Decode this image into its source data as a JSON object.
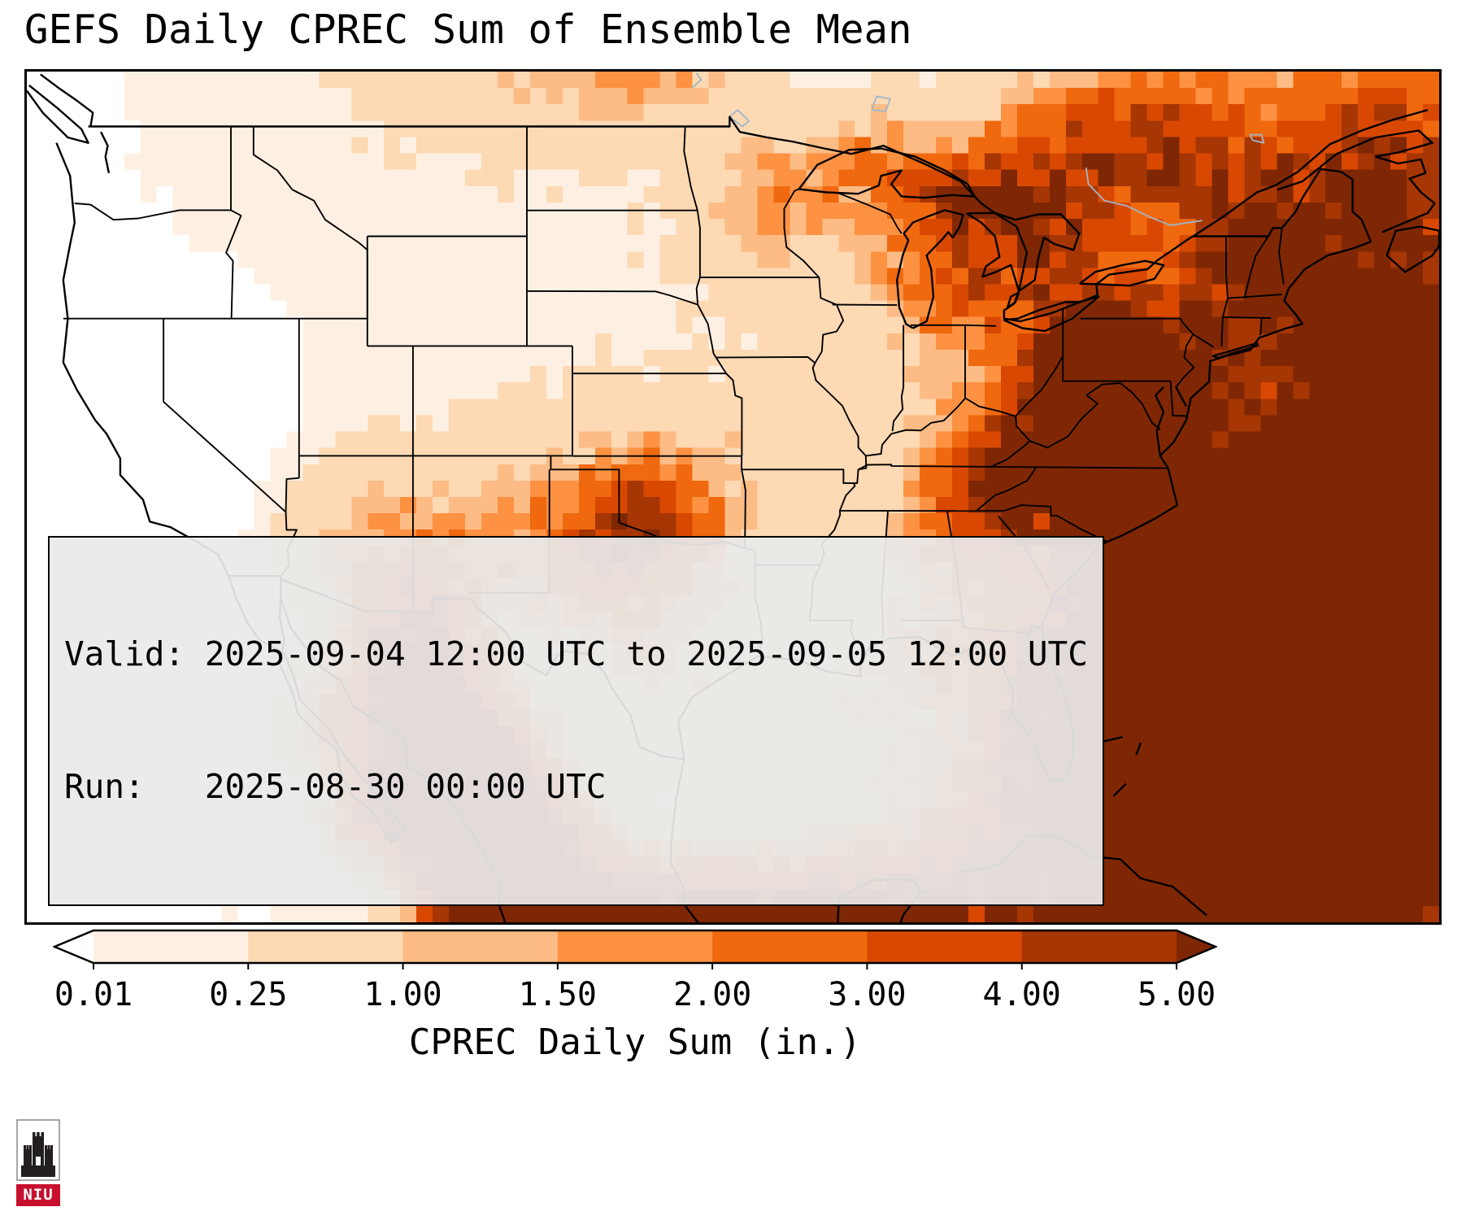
{
  "title": "GEFS Daily CPREC Sum of Ensemble Mean",
  "annotation_box": {
    "valid_line": "Valid: 2025-09-04 12:00 UTC to 2025-09-05 12:00 UTC",
    "run_line": "Run:   2025-08-30 00:00 UTC"
  },
  "colorbar": {
    "label": "CPREC Daily Sum (in.)",
    "tick_labels": [
      "0.01",
      "0.25",
      "1.00",
      "1.50",
      "2.00",
      "3.00",
      "4.00",
      "5.00"
    ]
  },
  "logo": {
    "text": "NIU"
  },
  "chart_data": {
    "type": "heatmap",
    "title": "GEFS Daily CPREC Sum of Ensemble Mean",
    "variable": "CPREC Daily Sum",
    "units": "in.",
    "valid": "2025-09-04 12:00 UTC to 2025-09-05 12:00 UTC",
    "run": "2025-08-30 00:00 UTC",
    "colorbar_label": "CPREC Daily Sum (in.)",
    "boundaries": [
      0.01,
      0.25,
      1.0,
      1.5,
      2.0,
      3.0,
      4.0,
      5.0
    ],
    "under_color": "#ffffff",
    "over_color": "#7f2704",
    "interval_colors": [
      "#fdf0e2",
      "#fdd9b4",
      "#fdbc85",
      "#fd9243",
      "#f0690f",
      "#d94801",
      "#a63603"
    ],
    "map_extent": {
      "lon_min": -126,
      "lon_max": -64,
      "lat_min": 20,
      "lat_max": 51
    },
    "grid": {
      "nx": 87,
      "ny": 52
    },
    "precip_maxima_format": [
      "lon",
      "lat",
      "sigma_lon_deg",
      "sigma_lat_deg",
      "peak_inches"
    ],
    "precip_maxima": [
      [
        -96,
        39,
        20,
        13,
        0.2
      ],
      [
        -119,
        39,
        4.5,
        3.5,
        -0.22
      ],
      [
        -123.5,
        31,
        6,
        7,
        -0.28
      ],
      [
        -126,
        45,
        3.5,
        5,
        -0.15
      ],
      [
        -99.2,
        34.4,
        1.9,
        1.5,
        2.6
      ],
      [
        -101,
        33,
        3.2,
        2.4,
        1.2
      ],
      [
        -97,
        35.8,
        2.6,
        2,
        1.0
      ],
      [
        -103.5,
        34.5,
        2.6,
        2.2,
        0.9
      ],
      [
        -98.5,
        30.8,
        2.6,
        2.2,
        0.7
      ],
      [
        -110.9,
        33.9,
        2.4,
        2,
        1.3
      ],
      [
        -108.3,
        32.3,
        2,
        1.7,
        1.1
      ],
      [
        -109.5,
        30.6,
        1.6,
        1.4,
        2.6
      ],
      [
        -108.8,
        28.2,
        1.7,
        1.7,
        6.5
      ],
      [
        -107.2,
        25.6,
        1.8,
        1.8,
        9
      ],
      [
        -105.8,
        23.2,
        1.9,
        1.9,
        9.5
      ],
      [
        -104.6,
        21.2,
        2.2,
        1.8,
        9
      ],
      [
        -110.3,
        24.3,
        1.4,
        1.2,
        4.5
      ],
      [
        -112.6,
        27.2,
        1.3,
        1.2,
        1.8
      ],
      [
        -100,
        19.3,
        3.5,
        1.6,
        8
      ],
      [
        -94,
        18.8,
        3.5,
        1.8,
        8
      ],
      [
        -88.5,
        19.5,
        3,
        1.8,
        6
      ],
      [
        -81.5,
        28.4,
        1.6,
        1.9,
        2.0
      ],
      [
        -80.9,
        25.9,
        1.7,
        1.5,
        2.8
      ],
      [
        -90.5,
        27.5,
        5,
        3,
        0.55
      ],
      [
        -85,
        29.8,
        2.2,
        1.6,
        1.1
      ],
      [
        -78.6,
        40.9,
        1.7,
        1.4,
        5.5
      ],
      [
        -79.6,
        39.2,
        1.9,
        1.6,
        4.5
      ],
      [
        -80.9,
        37.6,
        1.7,
        1.5,
        3.5
      ],
      [
        -82.7,
        35.9,
        2.1,
        1.6,
        3.8
      ],
      [
        -84.8,
        34.6,
        2,
        1.6,
        1.8
      ],
      [
        -77.3,
        37.8,
        2.2,
        2,
        2.2
      ],
      [
        -76.6,
        35.3,
        2.2,
        2,
        2.6
      ],
      [
        -75.3,
        39.8,
        1.6,
        1.4,
        3.0
      ],
      [
        -74.2,
        42.5,
        2,
        1.8,
        2.4
      ],
      [
        -71.5,
        44,
        2.2,
        1.8,
        2.0
      ],
      [
        -68.5,
        43,
        2.5,
        2,
        2.6
      ],
      [
        -66.5,
        46.8,
        2.6,
        2,
        3.2
      ],
      [
        -72.8,
        46.8,
        2.6,
        2,
        2.6
      ],
      [
        -76.5,
        48.8,
        3,
        2.2,
        2.6
      ],
      [
        -66,
        49.8,
        3.5,
        2.2,
        2.2
      ],
      [
        -84.9,
        46.4,
        1.4,
        1.0,
        3.2
      ],
      [
        -82.3,
        45.2,
        2.2,
        1.6,
        2.2
      ],
      [
        -80.5,
        47.2,
        2.8,
        2,
        2.8
      ],
      [
        -87.2,
        44.6,
        1.7,
        1.5,
        1.3
      ],
      [
        -84.3,
        42.8,
        1.9,
        1.6,
        1.4
      ],
      [
        -84.5,
        41,
        2.5,
        2,
        1.0
      ],
      [
        -80.4,
        43.7,
        1.7,
        1.4,
        2.0
      ],
      [
        -88.5,
        47.6,
        1.8,
        1.4,
        1.8
      ],
      [
        -92.8,
        46.6,
        1.9,
        1.5,
        1.0
      ],
      [
        -66,
        34,
        6,
        5,
        8
      ],
      [
        -71,
        28.5,
        6,
        4.5,
        8
      ],
      [
        -64,
        40.5,
        4,
        3.5,
        5
      ],
      [
        -77,
        30.5,
        2.8,
        3,
        3.5
      ],
      [
        -78.5,
        22,
        4.5,
        2.5,
        7
      ],
      [
        -69,
        21,
        5,
        3,
        8
      ],
      [
        -99,
        51.3,
        2.6,
        1.5,
        1.6
      ],
      [
        -89.5,
        38.5,
        3,
        2.5,
        0.3
      ],
      [
        -93.5,
        45.8,
        2.2,
        1.8,
        0.8
      ],
      [
        -105.5,
        51,
        4,
        2,
        0.7
      ]
    ]
  }
}
